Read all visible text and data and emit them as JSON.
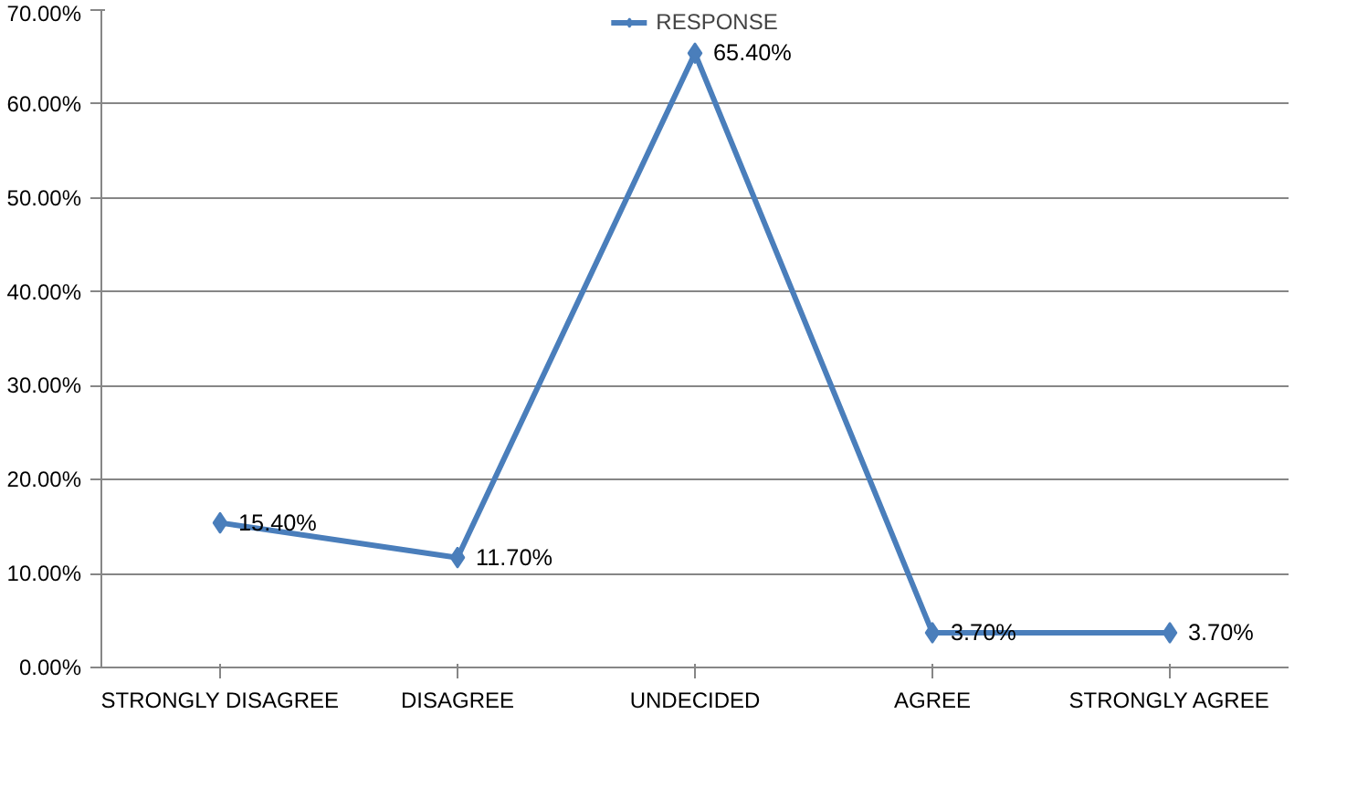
{
  "chart_data": {
    "type": "line",
    "categories": [
      "STRONGLY DISAGREE",
      "DISAGREE",
      "UNDECIDED",
      "AGREE",
      "STRONGLY AGREE"
    ],
    "series": [
      {
        "name": "RESPONSE",
        "color": "#4a7ebb",
        "values": [
          15.4,
          11.7,
          65.4,
          3.7,
          3.7
        ],
        "value_labels": [
          "15.40%",
          "11.70%",
          "65.40%",
          "3.70%",
          "3.70%"
        ]
      }
    ],
    "ylim": [
      0,
      70
    ],
    "yticks": [
      {
        "value": 0,
        "label": "0.00%"
      },
      {
        "value": 10,
        "label": "10.00%"
      },
      {
        "value": 20,
        "label": "20.00%"
      },
      {
        "value": 30,
        "label": "30.00%"
      },
      {
        "value": 40,
        "label": "40.00%"
      },
      {
        "value": 50,
        "label": "50.00%"
      },
      {
        "value": 60,
        "label": "60.00%"
      },
      {
        "value": 70,
        "label": "70.00%"
      }
    ],
    "grid": "y",
    "legend": "top",
    "marker": "diamond",
    "line_style": "solid"
  }
}
